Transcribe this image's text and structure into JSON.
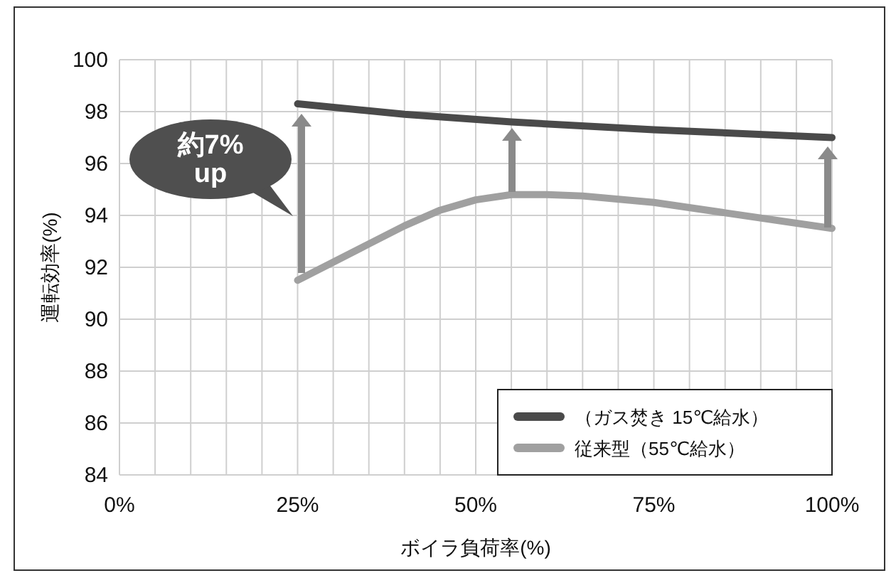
{
  "chart_data": {
    "type": "line",
    "xlabel": "ボイラ負荷率(%)",
    "ylabel": "運転効率(%)",
    "xlim": [
      0,
      100
    ],
    "ylim": [
      84,
      100
    ],
    "xticks": [
      {
        "value": 0,
        "label": "0%"
      },
      {
        "value": 5,
        "label": null
      },
      {
        "value": 10,
        "label": null
      },
      {
        "value": 15,
        "label": null
      },
      {
        "value": 20,
        "label": null
      },
      {
        "value": 25,
        "label": "25%"
      },
      {
        "value": 30,
        "label": null
      },
      {
        "value": 35,
        "label": null
      },
      {
        "value": 40,
        "label": null
      },
      {
        "value": 45,
        "label": null
      },
      {
        "value": 50,
        "label": "50%"
      },
      {
        "value": 55,
        "label": null
      },
      {
        "value": 60,
        "label": null
      },
      {
        "value": 65,
        "label": null
      },
      {
        "value": 70,
        "label": null
      },
      {
        "value": 75,
        "label": "75%"
      },
      {
        "value": 80,
        "label": null
      },
      {
        "value": 85,
        "label": null
      },
      {
        "value": 90,
        "label": null
      },
      {
        "value": 95,
        "label": null
      },
      {
        "value": 100,
        "label": "100%"
      }
    ],
    "yticks": [
      84,
      86,
      88,
      90,
      92,
      94,
      96,
      98,
      100
    ],
    "grid": true,
    "legend": "bottom right",
    "marker": "none",
    "line_style": "solid",
    "annotations": [
      "約7% up"
    ],
    "series": [
      {
        "name": "（ガス焚き 15℃給水）",
        "color": "#4a4a4a",
        "x": [
          25,
          40,
          55,
          75,
          100
        ],
        "values": [
          98.3,
          97.9,
          97.6,
          97.3,
          97.0
        ]
      },
      {
        "name": "従来型（55℃給水）",
        "color": "#a0a0a0",
        "x": [
          25,
          30,
          35,
          40,
          45,
          50,
          55,
          60,
          65,
          75,
          85,
          100
        ],
        "values": [
          91.5,
          92.2,
          92.9,
          93.6,
          94.2,
          94.6,
          94.8,
          94.8,
          94.75,
          94.5,
          94.1,
          93.5
        ]
      }
    ]
  }
}
